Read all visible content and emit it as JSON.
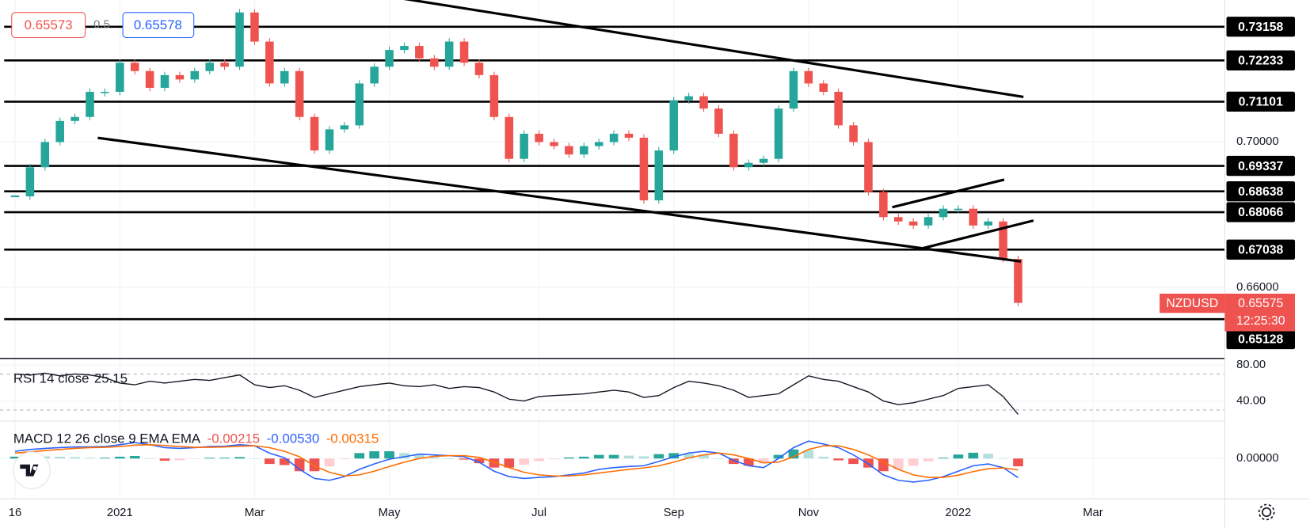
{
  "header": {
    "bid": "0.65573",
    "spread": "0.5",
    "ask": "0.65578",
    "symbol": "NZDUSD",
    "countdown": "12:25:30"
  },
  "chart_data": [
    {
      "type": "candlestick",
      "name": "NZDUSD",
      "categories": [
        "16",
        null,
        null,
        null,
        null,
        null,
        null,
        "2021",
        null,
        null,
        null,
        null,
        null,
        null,
        null,
        null,
        "Mar",
        null,
        null,
        null,
        null,
        null,
        null,
        null,
        null,
        "May",
        null,
        null,
        null,
        null,
        null,
        null,
        null,
        null,
        null,
        "Jul",
        null,
        null,
        null,
        null,
        null,
        null,
        null,
        null,
        "Sep",
        null,
        null,
        null,
        null,
        null,
        null,
        null,
        null,
        "Nov",
        null,
        null,
        null,
        null,
        null,
        null,
        null,
        null,
        null,
        "2022",
        null,
        null,
        null,
        null,
        null,
        null,
        null,
        null,
        "Mar"
      ],
      "values": [
        0.685,
        0.693,
        0.6999,
        0.7057,
        0.7068,
        0.7137,
        0.7137,
        0.7217,
        0.7194,
        0.7148,
        0.7183,
        0.7171,
        0.7194,
        0.7217,
        0.7206,
        0.7355,
        0.7275,
        0.716,
        0.7194,
        0.7068,
        0.6976,
        0.7034,
        0.7045,
        0.716,
        0.7206,
        0.7252,
        0.7263,
        0.7229,
        0.7206,
        0.7275,
        0.7217,
        0.7183,
        0.7068,
        0.6953,
        0.7022,
        0.6999,
        0.6988,
        0.6965,
        0.6988,
        0.6999,
        0.7022,
        0.7011,
        0.6839,
        0.6976,
        0.7114,
        0.7125,
        0.7091,
        0.7022,
        0.693,
        0.6942,
        0.6953,
        0.7091,
        0.7194,
        0.716,
        0.7137,
        0.7045,
        0.6999,
        0.6862,
        0.6793,
        0.6781,
        0.677,
        0.6793,
        0.6816,
        0.6816,
        0.677,
        0.6781,
        0.6678,
        0.65575,
        null,
        null,
        null,
        null,
        null
      ],
      "up_color": "#26a69a",
      "down_color": "#ef5350",
      "ylim": [
        0.64073,
        0.73892
      ],
      "yticks": [
        {
          "value": 0.66,
          "label": "0.66000"
        },
        {
          "value": 0.7,
          "label": "0.70000"
        }
      ],
      "levels": [
        0.73158,
        0.72233,
        0.71101,
        0.69337,
        0.68638,
        0.68066,
        0.67038,
        0.65128
      ],
      "grid": true
    },
    {
      "type": "line",
      "title": "RSI 14 close",
      "series": [
        {
          "name": "RSI",
          "color": "#131722",
          "values": [
            70,
            69,
            71,
            68,
            70,
            69,
            66,
            60,
            58,
            62,
            60,
            62,
            64,
            63,
            66,
            69,
            58,
            55,
            57,
            52,
            44,
            48,
            52,
            56,
            58,
            60,
            57,
            56,
            58,
            54,
            56,
            55,
            50,
            42,
            40,
            45,
            46,
            47,
            48,
            50,
            52,
            50,
            44,
            46,
            55,
            62,
            60,
            57,
            52,
            44,
            46,
            48,
            58,
            68,
            64,
            62,
            56,
            50,
            40,
            36,
            38,
            42,
            46,
            54,
            56,
            58,
            45,
            25.15,
            null,
            null,
            null,
            null,
            null
          ]
        }
      ],
      "ylim": [
        18.6,
        86.5
      ],
      "yticks": [
        {
          "value": 40,
          "label": "40.00"
        },
        {
          "value": 80,
          "label": "80.00"
        }
      ],
      "bands": [
        30,
        70
      ]
    },
    {
      "type": "macd",
      "title": "MACD 12 26 close 9 EMA EMA",
      "series": [
        {
          "name": "Histogram",
          "color": "#ef5350",
          "legend_value": "-0.00215",
          "values": [
            0.0005,
            0.0007,
            0.0006,
            0.0005,
            0.0004,
            0.0002,
            0.0002,
            0.0005,
            0.0007,
            0,
            -0.0006,
            -0.0005,
            -0.0001,
            0.0002,
            0.0002,
            0.0004,
            0,
            -0.0015,
            -0.0018,
            -0.0035,
            -0.0035,
            -0.0022,
            -0.0002,
            0.0015,
            0.002,
            0.002,
            0.0015,
            0.0012,
            0.0004,
            0,
            -0.0003,
            -0.0013,
            -0.0025,
            -0.0025,
            -0.0017,
            -0.0007,
            -0.0002,
            0.0003,
            0.0005,
            0.001,
            0.001,
            0.0008,
            0.0006,
            0.0012,
            0.0015,
            0.0013,
            0.001,
            0,
            -0.0015,
            -0.002,
            -0.0013,
            0.001,
            0.0025,
            0.0023,
            0.0005,
            -0.0005,
            -0.0015,
            -0.0025,
            -0.0035,
            -0.003,
            -0.002,
            -0.0008,
            0.0002,
            0.0011,
            0.0016,
            0.0013,
            0.0001,
            -0.00215,
            null,
            null,
            null,
            null,
            null
          ]
        },
        {
          "name": "MACD",
          "color": "#2962ff",
          "legend_value": "-0.00530",
          "values": [
            0.002,
            0.0025,
            0.0028,
            0.003,
            0.0032,
            0.0032,
            0.0033,
            0.0038,
            0.0044,
            0.0038,
            0.003,
            0.0028,
            0.003,
            0.0033,
            0.0034,
            0.0038,
            0.0035,
            0.0015,
            0.0002,
            -0.003,
            -0.0055,
            -0.006,
            -0.005,
            -0.003,
            -0.0015,
            -0.0002,
            0.0005,
            0.0012,
            0.001,
            0.0008,
            0.0005,
            -0.001,
            -0.0035,
            -0.005,
            -0.0055,
            -0.0052,
            -0.005,
            -0.0045,
            -0.004,
            -0.003,
            -0.0025,
            -0.0022,
            -0.002,
            -0.0008,
            0.0005,
            0.0015,
            0.002,
            0.0015,
            -0.0005,
            -0.002,
            -0.0025,
            0,
            0.003,
            0.0048,
            0.004,
            0.003,
            0.001,
            -0.0015,
            -0.0045,
            -0.006,
            -0.0065,
            -0.006,
            -0.005,
            -0.0035,
            -0.002,
            -0.0015,
            -0.0025,
            -0.0053,
            null,
            null,
            null,
            null,
            null
          ]
        },
        {
          "name": "Signal",
          "color": "#ff6d00",
          "legend_value": "-0.00315",
          "values": [
            0.0015,
            0.0018,
            0.0022,
            0.0025,
            0.0028,
            0.003,
            0.0031,
            0.0033,
            0.0037,
            0.0038,
            0.0036,
            0.0033,
            0.0031,
            0.0031,
            0.0032,
            0.0034,
            0.0035,
            0.003,
            0.002,
            0.0005,
            -0.002,
            -0.0038,
            -0.0048,
            -0.0045,
            -0.0035,
            -0.0022,
            -0.001,
            0,
            0.0006,
            0.0008,
            0.0008,
            0.0003,
            -0.001,
            -0.0025,
            -0.0038,
            -0.0045,
            -0.0048,
            -0.0048,
            -0.0045,
            -0.004,
            -0.0035,
            -0.003,
            -0.0026,
            -0.002,
            -0.001,
            0.0002,
            0.001,
            0.0015,
            0.001,
            0,
            -0.0012,
            -0.001,
            0.0005,
            0.0025,
            0.0035,
            0.0035,
            0.0025,
            0.001,
            -0.001,
            -0.003,
            -0.0045,
            -0.0052,
            -0.0052,
            -0.0046,
            -0.0036,
            -0.0028,
            -0.0026,
            -0.00315,
            null,
            null,
            null,
            null,
            null
          ]
        }
      ],
      "ylim": [
        -0.0111,
        0.0101
      ],
      "yticks": [
        {
          "value": 0,
          "label": "0.00000"
        }
      ]
    }
  ]
}
